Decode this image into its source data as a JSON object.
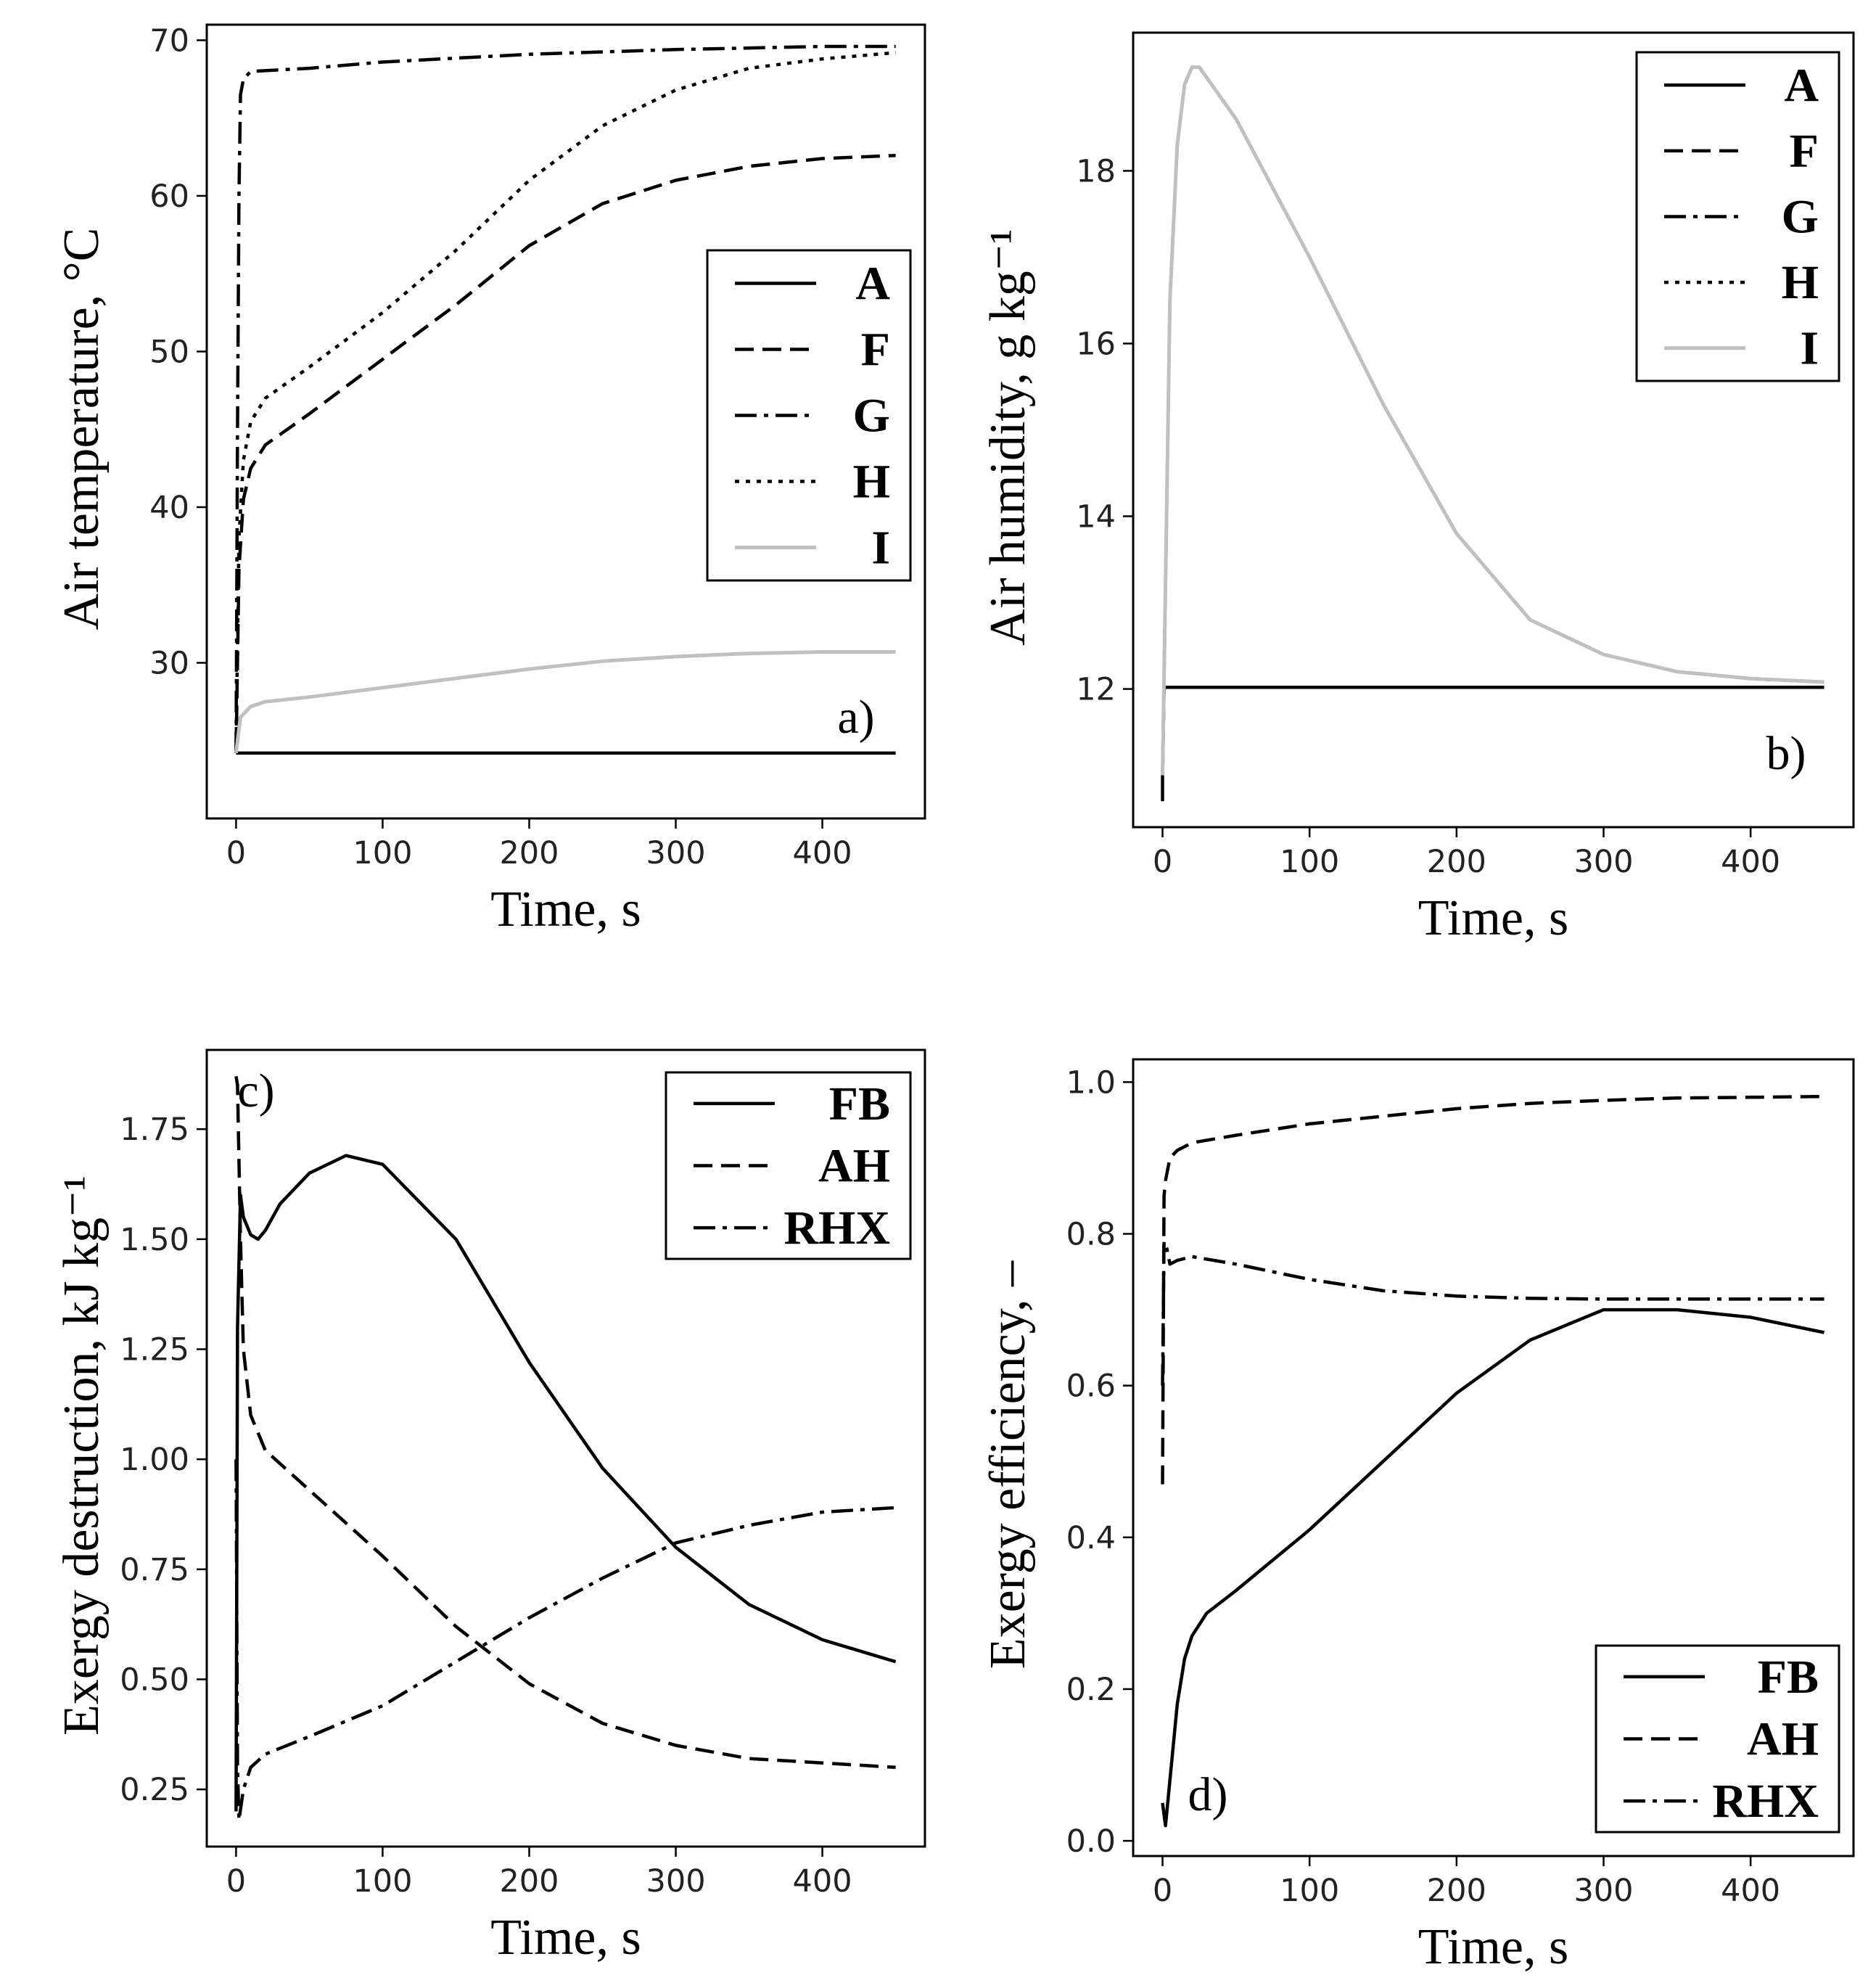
{
  "chart_data": [
    {
      "id": "a",
      "type": "line",
      "panel_label": "a)",
      "xlabel": "Time, s",
      "ylabel": "Air temperature, °C",
      "xlim": [
        -20,
        470
      ],
      "ylim": [
        20,
        71
      ],
      "xticks": [
        0,
        100,
        200,
        300,
        400
      ],
      "yticks": [
        30,
        40,
        50,
        60,
        70
      ],
      "legend_position": "center-right",
      "series": [
        {
          "name": "A",
          "style": "solid",
          "color": "#000000",
          "x": [
            0,
            450
          ],
          "y": [
            24.2,
            24.2
          ]
        },
        {
          "name": "F",
          "style": "dashed",
          "color": "#000000",
          "x": [
            0,
            2,
            5,
            10,
            20,
            50,
            100,
            150,
            200,
            250,
            300,
            350,
            400,
            450
          ],
          "y": [
            24.2,
            36.0,
            40.5,
            42.5,
            44.0,
            46.0,
            49.5,
            53.0,
            56.8,
            59.5,
            61.0,
            61.9,
            62.4,
            62.6
          ]
        },
        {
          "name": "G",
          "style": "dashdot",
          "color": "#000000",
          "x": [
            0,
            1,
            2,
            3,
            5,
            10,
            50,
            100,
            200,
            300,
            400,
            450
          ],
          "y": [
            24.2,
            45.0,
            60.0,
            66.5,
            67.5,
            68.0,
            68.2,
            68.6,
            69.1,
            69.4,
            69.6,
            69.6
          ]
        },
        {
          "name": "H",
          "style": "dotted",
          "color": "#000000",
          "x": [
            0,
            2,
            5,
            10,
            20,
            50,
            100,
            150,
            200,
            250,
            300,
            350,
            400,
            450
          ],
          "y": [
            24.2,
            38.0,
            43.0,
            45.5,
            47.0,
            49.0,
            52.5,
            56.5,
            61.0,
            64.5,
            66.8,
            68.2,
            68.8,
            69.2
          ]
        },
        {
          "name": "I",
          "style": "solid",
          "color": "#c0c0c0",
          "x": [
            0,
            3,
            10,
            20,
            50,
            100,
            150,
            200,
            250,
            300,
            350,
            400,
            450
          ],
          "y": [
            24.2,
            26.5,
            27.2,
            27.5,
            27.8,
            28.4,
            29.0,
            29.6,
            30.1,
            30.4,
            30.6,
            30.7,
            30.7
          ]
        }
      ]
    },
    {
      "id": "b",
      "type": "line",
      "panel_label": "b)",
      "xlabel": "Time, s",
      "ylabel": "Air humidity, g kg⁻¹",
      "xlim": [
        -20,
        470
      ],
      "ylim": [
        10.4,
        19.6
      ],
      "xticks": [
        0,
        100,
        200,
        300,
        400
      ],
      "yticks": [
        12,
        14,
        16,
        18
      ],
      "legend_position": "top-right",
      "series": [
        {
          "name": "A",
          "style": "solid",
          "color": "#000000",
          "x": [
            0,
            0,
            1,
            450
          ],
          "y": [
            10.7,
            11.0,
            12.02,
            12.02
          ]
        },
        {
          "name": "F",
          "style": "dashed",
          "color": "#000000",
          "x": [
            0,
            1,
            450
          ],
          "y": [
            11.0,
            12.02,
            12.02
          ]
        },
        {
          "name": "G",
          "style": "dashdot",
          "color": "#000000",
          "x": [
            0,
            1,
            450
          ],
          "y": [
            11.0,
            12.02,
            12.02
          ]
        },
        {
          "name": "H",
          "style": "dotted",
          "color": "#000000",
          "x": [
            0,
            5,
            10,
            15,
            20,
            25,
            50,
            100,
            150,
            200,
            250,
            300,
            350,
            400,
            450
          ],
          "y": [
            11.0,
            16.5,
            18.3,
            19.0,
            19.2,
            19.2,
            18.6,
            17.0,
            15.3,
            13.8,
            12.8,
            12.4,
            12.2,
            12.12,
            12.08
          ]
        },
        {
          "name": "I",
          "style": "solid",
          "color": "#c0c0c0",
          "x": [
            0,
            5,
            10,
            15,
            20,
            25,
            50,
            100,
            150,
            200,
            250,
            300,
            350,
            400,
            450
          ],
          "y": [
            11.0,
            16.5,
            18.3,
            19.0,
            19.2,
            19.2,
            18.6,
            17.0,
            15.3,
            13.8,
            12.8,
            12.4,
            12.2,
            12.12,
            12.08
          ]
        }
      ]
    },
    {
      "id": "c",
      "type": "line",
      "panel_label": "c)",
      "xlabel": "Time, s",
      "ylabel": "Exergy destruction, kJ kg⁻¹",
      "xlim": [
        -20,
        470
      ],
      "ylim": [
        0.12,
        1.93
      ],
      "xticks": [
        0,
        100,
        200,
        300,
        400
      ],
      "yticks": [
        0.25,
        0.5,
        0.75,
        1.0,
        1.25,
        1.5,
        1.75
      ],
      "ytick_labels": [
        "0.25",
        "0.50",
        "0.75",
        "1.00",
        "1.25",
        "1.50",
        "1.75"
      ],
      "legend_position": "top-right",
      "series": [
        {
          "name": "FB",
          "style": "solid",
          "color": "#000000",
          "x": [
            0,
            1,
            3,
            5,
            10,
            15,
            20,
            30,
            50,
            75,
            100,
            150,
            200,
            250,
            300,
            350,
            400,
            450
          ],
          "y": [
            0.2,
            1.3,
            1.6,
            1.55,
            1.51,
            1.5,
            1.52,
            1.58,
            1.65,
            1.69,
            1.67,
            1.5,
            1.22,
            0.98,
            0.8,
            0.67,
            0.59,
            0.54
          ]
        },
        {
          "name": "AH",
          "style": "dashed",
          "color": "#000000",
          "x": [
            0,
            1,
            3,
            5,
            10,
            20,
            50,
            100,
            150,
            200,
            250,
            300,
            350,
            400,
            450
          ],
          "y": [
            1.87,
            1.85,
            1.5,
            1.25,
            1.1,
            1.02,
            0.93,
            0.78,
            0.62,
            0.49,
            0.4,
            0.35,
            0.32,
            0.31,
            0.3
          ]
        },
        {
          "name": "RHX",
          "style": "dashdot",
          "color": "#000000",
          "x": [
            0,
            1,
            2,
            5,
            10,
            20,
            50,
            100,
            150,
            200,
            250,
            300,
            350,
            400,
            450
          ],
          "y": [
            1.0,
            0.3,
            0.18,
            0.25,
            0.3,
            0.33,
            0.37,
            0.44,
            0.54,
            0.64,
            0.73,
            0.81,
            0.85,
            0.88,
            0.89
          ]
        }
      ]
    },
    {
      "id": "d",
      "type": "line",
      "panel_label": "d)",
      "xlabel": "Time, s",
      "ylabel": "Exergy efficiency, –",
      "xlim": [
        -20,
        470
      ],
      "ylim": [
        -0.02,
        1.03
      ],
      "xticks": [
        0,
        100,
        200,
        300,
        400
      ],
      "yticks": [
        0.0,
        0.2,
        0.4,
        0.6,
        0.8,
        1.0
      ],
      "ytick_labels": [
        "0.0",
        "0.2",
        "0.4",
        "0.6",
        "0.8",
        "1.0"
      ],
      "legend_position": "bottom-right",
      "series": [
        {
          "name": "FB",
          "style": "solid",
          "color": "#000000",
          "x": [
            0,
            2,
            5,
            10,
            15,
            20,
            30,
            50,
            100,
            150,
            200,
            250,
            300,
            350,
            400,
            450
          ],
          "y": [
            0.05,
            0.02,
            0.08,
            0.18,
            0.24,
            0.27,
            0.3,
            0.33,
            0.41,
            0.5,
            0.59,
            0.66,
            0.7,
            0.7,
            0.69,
            0.67
          ]
        },
        {
          "name": "AH",
          "style": "dashed",
          "color": "#000000",
          "x": [
            0,
            1,
            2,
            5,
            10,
            20,
            50,
            100,
            150,
            200,
            250,
            300,
            350,
            400,
            450
          ],
          "y": [
            0.47,
            0.85,
            0.87,
            0.9,
            0.91,
            0.92,
            0.93,
            0.945,
            0.955,
            0.965,
            0.972,
            0.976,
            0.979,
            0.98,
            0.981
          ]
        },
        {
          "name": "RHX",
          "style": "dashdot",
          "color": "#000000",
          "x": [
            0,
            1,
            3,
            5,
            10,
            20,
            50,
            100,
            150,
            200,
            250,
            300,
            350,
            400,
            450
          ],
          "y": [
            0.6,
            0.79,
            0.78,
            0.76,
            0.765,
            0.77,
            0.76,
            0.74,
            0.725,
            0.718,
            0.715,
            0.714,
            0.714,
            0.714,
            0.714
          ]
        }
      ]
    }
  ]
}
